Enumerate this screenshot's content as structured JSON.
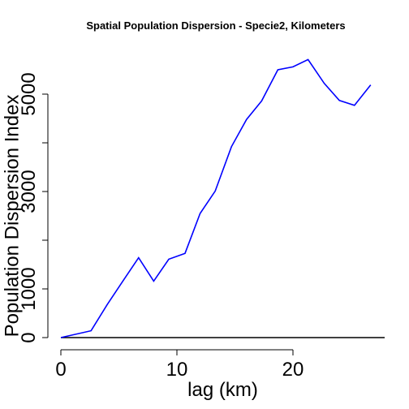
{
  "chart_data": {
    "type": "line",
    "title": "Spatial Population Dispersion - Specie2, Kilometers",
    "xlabel": "lag (km)",
    "ylabel": "Population Dispersion Index",
    "xlim": [
      0,
      27
    ],
    "ylim": [
      0,
      6000
    ],
    "x_ticks": [
      0,
      10,
      20
    ],
    "x_tick_labels": [
      "0",
      "10",
      "20"
    ],
    "y_ticks": [
      0,
      1000,
      2000,
      3000,
      4000,
      5000
    ],
    "y_tick_labels": [
      "0",
      "1000",
      "",
      "3000",
      "",
      "5000"
    ],
    "grid": false,
    "series": [
      {
        "color": "#0000ff",
        "x": [
          0,
          2.6,
          4.0,
          5.4,
          6.7,
          8.0,
          9.3,
          10.7,
          12.0,
          13.3,
          14.7,
          16.0,
          17.3,
          18.7,
          20.0,
          21.3,
          22.7,
          24.0,
          25.3,
          26.7
        ],
        "y": [
          0,
          140,
          680,
          1180,
          1640,
          1160,
          1610,
          1730,
          2550,
          3010,
          3920,
          4480,
          4860,
          5500,
          5560,
          5710,
          5220,
          4870,
          4770,
          5190
        ]
      }
    ],
    "baseline": 0
  }
}
